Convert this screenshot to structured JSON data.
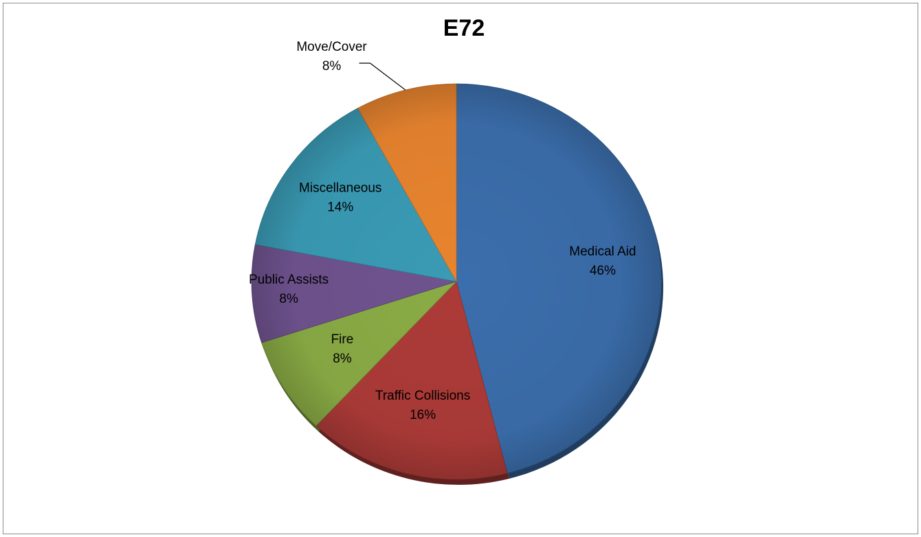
{
  "chart_data": {
    "type": "pie",
    "title": "E72",
    "slices": [
      {
        "label": "Medical Aid",
        "value": 46,
        "display": "46%",
        "color": "#3b6eac"
      },
      {
        "label": "Traffic Collisions",
        "value": 16,
        "display": "16%",
        "color": "#ad3b38"
      },
      {
        "label": "Fire",
        "value": 8,
        "display": "8%",
        "color": "#8aac45"
      },
      {
        "label": "Public Assists",
        "value": 8,
        "display": "8%",
        "color": "#6f538f"
      },
      {
        "label": "Miscellaneous",
        "value": 14,
        "display": "14%",
        "color": "#3a9bb5"
      },
      {
        "label": "Move/Cover",
        "value": 8,
        "display": "8%",
        "color": "#e8842f"
      }
    ],
    "start": "12 o'clock",
    "direction": "clockwise",
    "legend": "none",
    "labels": "category and percentage on slices"
  }
}
